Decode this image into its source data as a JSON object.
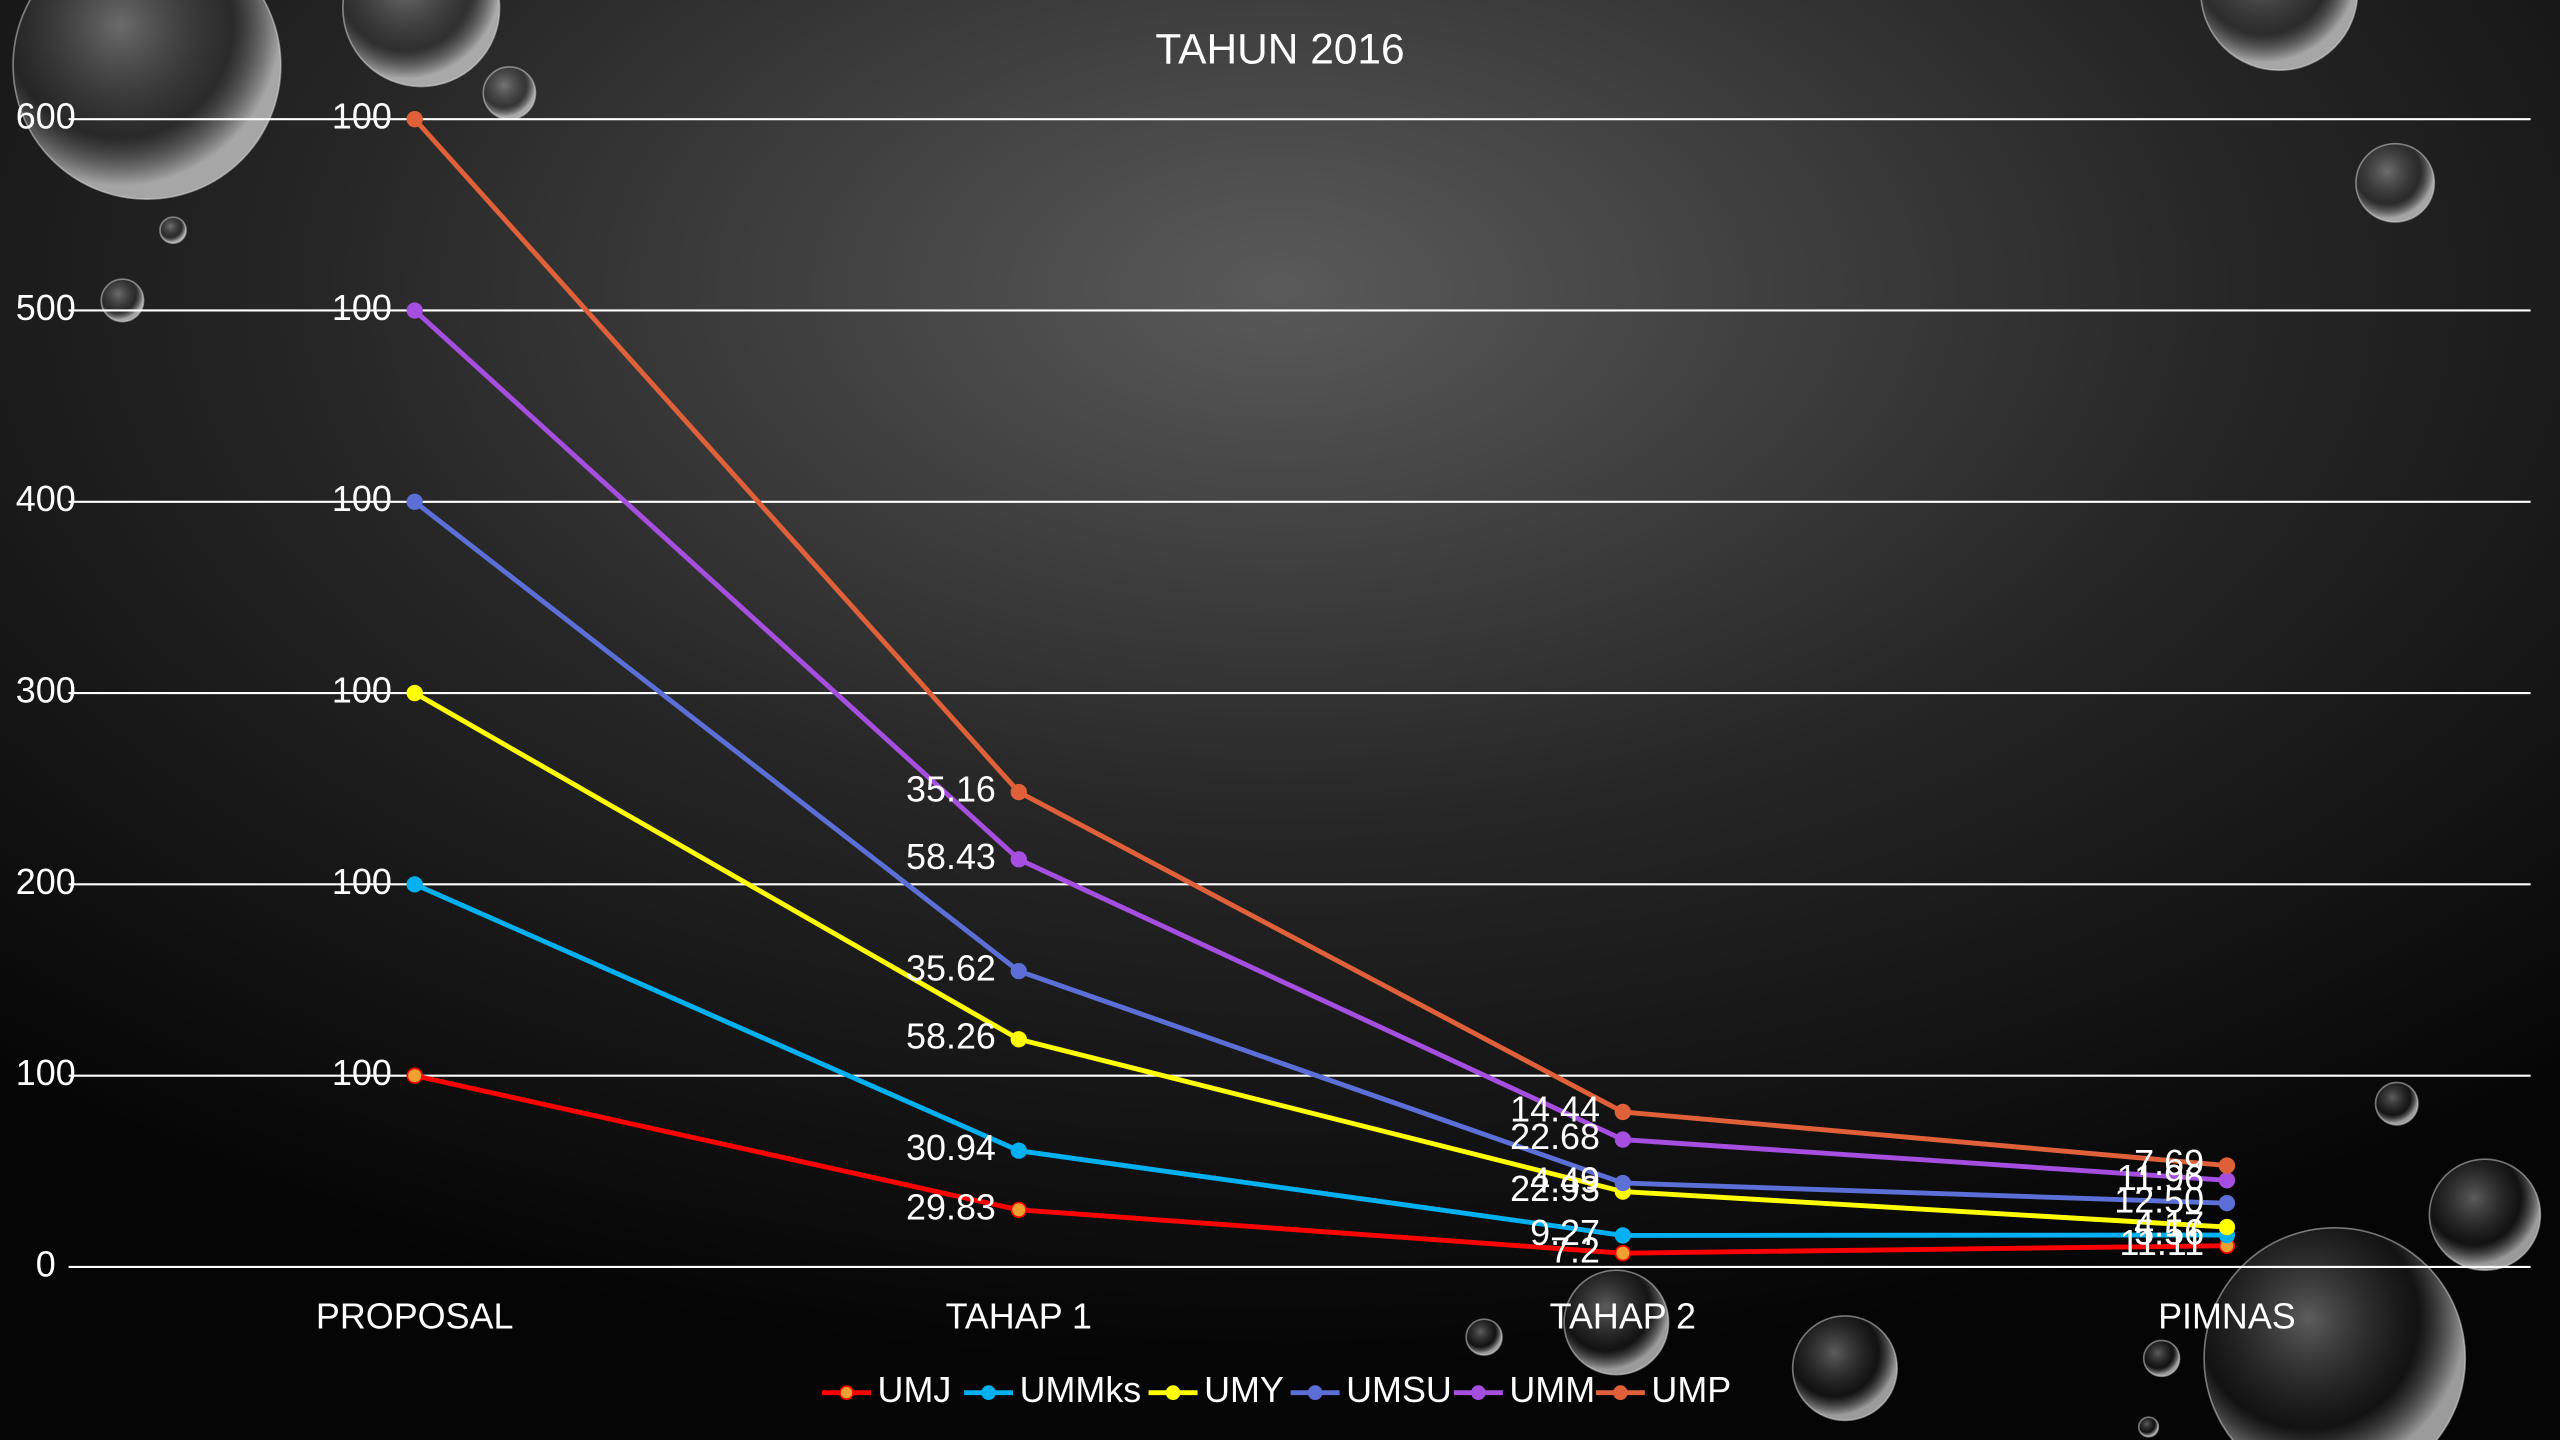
{
  "chart_data": {
    "type": "line",
    "stacked": true,
    "title": "TAHUN 2016",
    "categories": [
      "PROPOSAL",
      "TAHAP 1",
      "TAHAP 2",
      "PIMNAS"
    ],
    "series": [
      {
        "name": "UMJ",
        "color": "#ff0000",
        "marker_color": "#f0a030",
        "values": [
          100,
          29.83,
          7.2,
          11.11
        ],
        "value_labels": [
          "100",
          "29.83",
          "7.2",
          "11.11"
        ]
      },
      {
        "name": "UMMks",
        "color": "#00b0f0",
        "marker_color": "#00b0f0",
        "values": [
          100,
          30.94,
          9.27,
          5.56
        ],
        "value_labels": [
          "100",
          "30.94",
          "9.27",
          "5.56"
        ]
      },
      {
        "name": "UMY",
        "color": "#ffff00",
        "marker_color": "#ffff00",
        "values": [
          100,
          58.26,
          22.93,
          4.17
        ],
        "value_labels": [
          "100",
          "58.26",
          "22.93",
          "4.17"
        ]
      },
      {
        "name": "UMSU",
        "color": "#5b6fd6",
        "marker_color": "#5b6fd6",
        "values": [
          100,
          35.62,
          4.49,
          12.5
        ],
        "value_labels": [
          "100",
          "35.62",
          "4.49",
          "12.50"
        ]
      },
      {
        "name": "UMM",
        "color": "#a64ee0",
        "marker_color": "#a64ee0",
        "values": [
          100,
          58.43,
          22.68,
          11.96
        ],
        "value_labels": [
          "100",
          "58.43",
          "22.68",
          "11.96"
        ]
      },
      {
        "name": "UMP",
        "color": "#e0603a",
        "marker_color": "#e0603a",
        "values": [
          100,
          35.16,
          14.44,
          7.69
        ],
        "value_labels": [
          "100",
          "35.16",
          "14.44",
          "7.69"
        ]
      }
    ],
    "ylim": [
      0,
      600
    ],
    "yticks": [
      0,
      100,
      200,
      300,
      400,
      500,
      600
    ],
    "grid": true,
    "legend": "bottom"
  }
}
